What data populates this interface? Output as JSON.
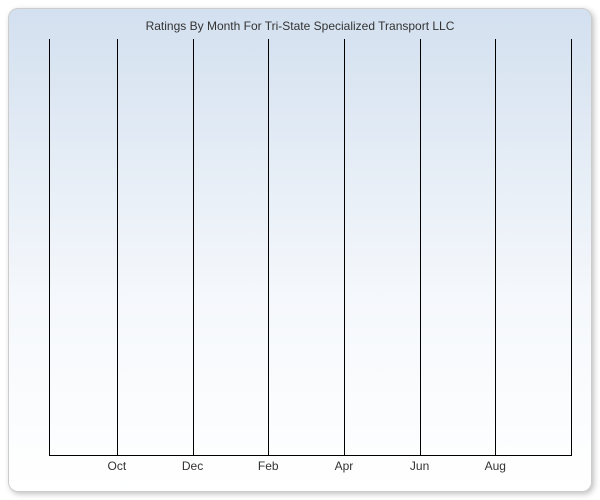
{
  "chart": {
    "type": "line",
    "title": "Ratings By Month For Tri-State Specialized Transport LLC",
    "title_fontsize": 12,
    "title_color": "#333333",
    "background_gradient_top": "#d3e0ef",
    "background_gradient_mid": "#f5f8fc",
    "background_gradient_bottom": "#ffffff",
    "border_color": "#cccccc",
    "border_radius": 10,
    "shadow_color": "rgba(0,0,0,0.25)",
    "axis_color": "#000000",
    "gridline_color": "#000000",
    "gridline_width": 1,
    "x_categories": [
      "Oct",
      "Dec",
      "Feb",
      "Apr",
      "Jun",
      "Aug"
    ],
    "x_gridline_positions_pct": [
      13.0,
      27.5,
      42.0,
      56.5,
      71.0,
      85.5,
      100.0
    ],
    "x_label_positions_pct": [
      13.0,
      27.5,
      42.0,
      56.5,
      71.0,
      85.5
    ],
    "x_label_fontsize": 12,
    "x_label_color": "#333333",
    "series": [],
    "ylim": null,
    "yticks": []
  }
}
